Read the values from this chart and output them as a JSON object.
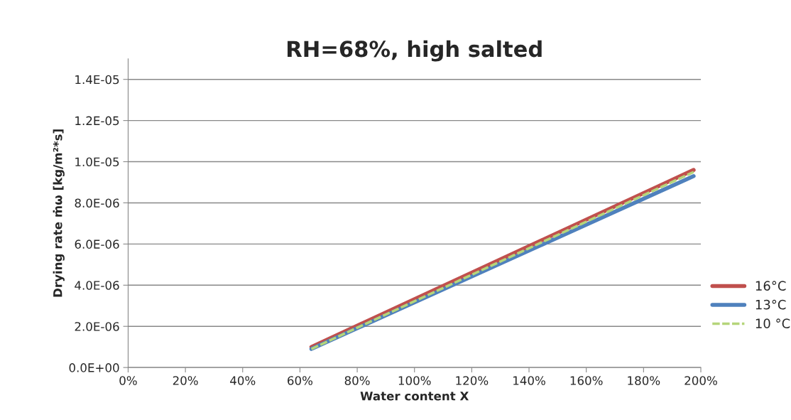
{
  "chart_data": {
    "type": "line",
    "title": "RH=68%, high salted",
    "xlabel": "Water content X",
    "ylabel": "Drying rate ṁω [kg/m²*s]",
    "series": [
      {
        "name": "16°C",
        "color": "#c0504d",
        "values": [
          1e-06,
          9.6e-06
        ]
      },
      {
        "name": "13°C",
        "color": "#4f81bd",
        "values": [
          9e-07,
          9.3e-06
        ]
      },
      {
        "name": "10 °C",
        "color": "#b5d57a",
        "values": [
          9e-07,
          9.5e-06
        ],
        "line_style": "dashed"
      }
    ],
    "x": [
      0.64,
      1.975
    ],
    "xlim": [
      0,
      2
    ],
    "xticks": [
      {
        "value": 0,
        "label": "0%"
      },
      {
        "value": 0.2,
        "label": "20%"
      },
      {
        "value": 0.4,
        "label": "40%"
      },
      {
        "value": 0.6,
        "label": "60%"
      },
      {
        "value": 0.8,
        "label": "80%"
      },
      {
        "value": 1.0,
        "label": "100%"
      },
      {
        "value": 1.2,
        "label": "120%"
      },
      {
        "value": 1.4,
        "label": "140%"
      },
      {
        "value": 1.6,
        "label": "160%"
      },
      {
        "value": 1.8,
        "label": "180%"
      },
      {
        "value": 2.0,
        "label": "200%"
      }
    ],
    "ylim": [
      0,
      1.5e-05
    ],
    "yticks": [
      {
        "value": 0,
        "label": "0.0E+00"
      },
      {
        "value": 2e-06,
        "label": "2.0E-06"
      },
      {
        "value": 4e-06,
        "label": "4.0E-06"
      },
      {
        "value": 6e-06,
        "label": "6.0E-06"
      },
      {
        "value": 8e-06,
        "label": "8.0E-06"
      },
      {
        "value": 1e-05,
        "label": "1.0E-05"
      },
      {
        "value": 1.2e-05,
        "label": "1.2E-05"
      },
      {
        "value": 1.4e-05,
        "label": "1.4E-05"
      }
    ],
    "grid": "y",
    "legend": "right",
    "line_style": "solid"
  }
}
